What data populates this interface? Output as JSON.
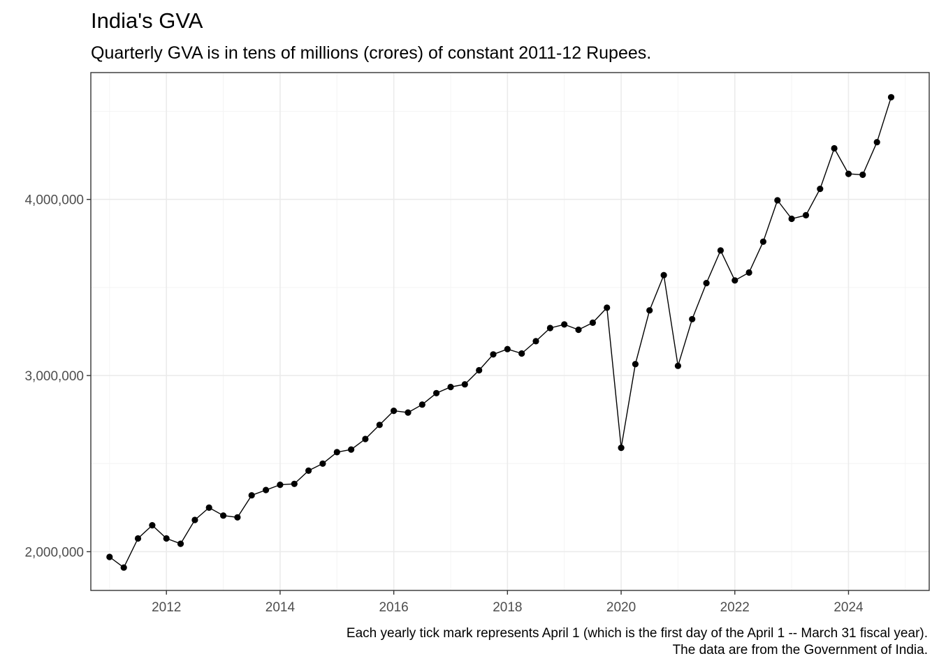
{
  "chart_data": {
    "type": "line",
    "title": "India's GVA",
    "subtitle": "Quarterly GVA is in tens of millions (crores) of constant 2011-12 Rupees.",
    "xlabel": "",
    "ylabel": "",
    "caption": [
      "Each yearly tick mark represents April 1 (which is the first day of the April 1 -- March 31 fiscal year).",
      "The data are from the Government of India."
    ],
    "x_ticks": [
      "2012",
      "2014",
      "2016",
      "2018",
      "2020",
      "2022",
      "2024"
    ],
    "y_ticks": [
      "2,000,000",
      "3,000,000",
      "4,000,000"
    ],
    "y_tick_values": [
      2000000,
      3000000,
      4000000
    ],
    "xlim": [
      2010.67,
      2025.42
    ],
    "ylim": [
      1780000,
      4720000
    ],
    "grid": true,
    "legend": "none",
    "line_color": "#000000",
    "series": [
      {
        "x": [
          2011.0,
          2011.25,
          2011.5,
          2011.75,
          2012.0,
          2012.25,
          2012.5,
          2012.75,
          2013.0,
          2013.25,
          2013.5,
          2013.75,
          2014.0,
          2014.25,
          2014.5,
          2014.75,
          2015.0,
          2015.25,
          2015.5,
          2015.75,
          2016.0,
          2016.25,
          2016.5,
          2016.75,
          2017.0,
          2017.25,
          2017.5,
          2017.75,
          2018.0,
          2018.25,
          2018.5,
          2018.75,
          2019.0,
          2019.25,
          2019.5,
          2019.75,
          2020.0,
          2020.25,
          2020.5,
          2020.75,
          2021.0,
          2021.25,
          2021.5,
          2021.75,
          2022.0,
          2022.25,
          2022.5,
          2022.75,
          2023.0,
          2023.25,
          2023.5,
          2023.75,
          2024.0,
          2024.25,
          2024.5,
          2024.75
        ],
        "values": [
          1970000,
          1910000,
          2075000,
          2150000,
          2075000,
          2045000,
          2180000,
          2250000,
          2205000,
          2195000,
          2320000,
          2350000,
          2380000,
          2385000,
          2460000,
          2500000,
          2565000,
          2580000,
          2640000,
          2720000,
          2800000,
          2790000,
          2835000,
          2900000,
          2935000,
          2950000,
          3030000,
          3120000,
          3150000,
          3125000,
          3195000,
          3270000,
          3290000,
          3260000,
          3300000,
          3385000,
          2590000,
          3065000,
          3370000,
          3570000,
          3055000,
          3320000,
          3525000,
          3710000,
          3540000,
          3585000,
          3760000,
          3995000,
          3890000,
          3910000,
          4060000,
          4290000,
          4145000,
          4140000,
          4325000,
          4580000
        ]
      }
    ]
  }
}
